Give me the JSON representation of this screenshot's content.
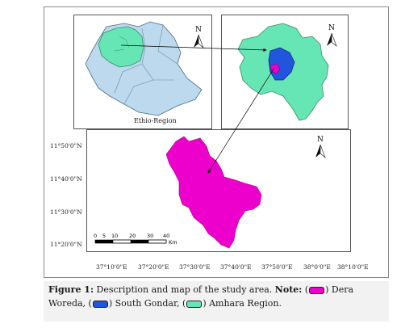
{
  "north_label": "N",
  "ethio_label": "Ethio-Region",
  "latitudes": [
    "11°50'0\"N",
    "11°40'0\"N",
    "11°30'0\"N",
    "11°20'0\"N"
  ],
  "longitudes": [
    "37°10'0\"E",
    "37°20'0\"E",
    "37°30'0\"E",
    "37°40'0\"E",
    "37°50'0\"E",
    "38°0'0\"E",
    "38°10'0\"E"
  ],
  "scale": {
    "ticks": [
      "0",
      "5",
      "10",
      "20",
      "30",
      "40"
    ],
    "unit": "Km"
  },
  "caption": {
    "figure": "Figure 1:",
    "description": " Description and map of the  study area. ",
    "note": "Note:",
    "item1": ") Dera",
    "item1b": "Woreda, (",
    "item2": ") South Gondar, (",
    "item3": ") Amhara Region."
  },
  "colors": {
    "dera": "#ee00cc",
    "south_gondar": "#2255dd",
    "amhara": "#66e6b4",
    "ethiopia": "#bcd9ee"
  }
}
